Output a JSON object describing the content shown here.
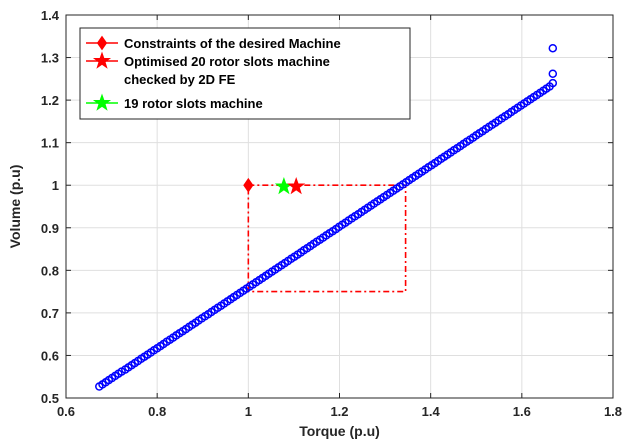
{
  "chart_data": {
    "type": "scatter",
    "title": "",
    "xlabel": "Torque (p.u)",
    "ylabel": "Volume (p.u)",
    "xlim": [
      0.6,
      1.8
    ],
    "ylim": [
      0.5,
      1.4
    ],
    "xticks": [
      "0.6",
      "0.8",
      "1",
      "1.2",
      "1.4",
      "1.6",
      "1.8"
    ],
    "yticks": [
      "0.5",
      "0.6",
      "0.7",
      "0.8",
      "0.9",
      "1",
      "1.1",
      "1.2",
      "1.3",
      "1.4"
    ],
    "grid": true,
    "legend_position": "top-left",
    "legend": [
      {
        "label_lines": [
          "Constraints of the desired Machine"
        ],
        "marker": "diamond",
        "color": "#ff0000"
      },
      {
        "label_lines": [
          "Optimised 20 rotor slots machine",
          "checked by 2D FE"
        ],
        "marker": "star",
        "color": "#ff0000"
      },
      {
        "label_lines": [
          "19 rotor slots machine"
        ],
        "marker": "star",
        "color": "#00ff00"
      }
    ],
    "scatter_series": {
      "name": "",
      "color": "#0000ff",
      "x": [
        0.673,
        0.68,
        0.687,
        0.694,
        0.701,
        0.708,
        0.715,
        0.722,
        0.73,
        0.737,
        0.744,
        0.751,
        0.758,
        0.765,
        0.772,
        0.779,
        0.786,
        0.793,
        0.8,
        0.807,
        0.814,
        0.821,
        0.828,
        0.835,
        0.842,
        0.849,
        0.856,
        0.863,
        0.87,
        0.877,
        0.884,
        0.891,
        0.898,
        0.905,
        0.912,
        0.919,
        0.926,
        0.933,
        0.94,
        0.947,
        0.954,
        0.961,
        0.968,
        0.975,
        0.982,
        0.989,
        0.996,
        1.003,
        1.01,
        1.017,
        1.024,
        1.031,
        1.038,
        1.045,
        1.052,
        1.059,
        1.066,
        1.073,
        1.08,
        1.087,
        1.094,
        1.101,
        1.108,
        1.115,
        1.122,
        1.129,
        1.136,
        1.143,
        1.15,
        1.157,
        1.164,
        1.171,
        1.178,
        1.185,
        1.192,
        1.199,
        1.206,
        1.213,
        1.22,
        1.227,
        1.234,
        1.241,
        1.248,
        1.255,
        1.262,
        1.269,
        1.276,
        1.283,
        1.29,
        1.297,
        1.304,
        1.311,
        1.318,
        1.325,
        1.332,
        1.339,
        1.346,
        1.353,
        1.36,
        1.367,
        1.374,
        1.381,
        1.388,
        1.395,
        1.402,
        1.409,
        1.416,
        1.423,
        1.43,
        1.437,
        1.444,
        1.451,
        1.458,
        1.465,
        1.472,
        1.479,
        1.486,
        1.493,
        1.5,
        1.507,
        1.514,
        1.521,
        1.528,
        1.535,
        1.542,
        1.549,
        1.556,
        1.563,
        1.57,
        1.577,
        1.584,
        1.591,
        1.598,
        1.605,
        1.612,
        1.619,
        1.626,
        1.633,
        1.64,
        1.647,
        1.654,
        1.661,
        1.668,
        1.668,
        1.668
      ],
      "y": [
        0.527,
        0.532,
        0.537,
        0.542,
        0.547,
        0.552,
        0.557,
        0.562,
        0.567,
        0.572,
        0.577,
        0.582,
        0.587,
        0.592,
        0.597,
        0.602,
        0.607,
        0.612,
        0.617,
        0.622,
        0.627,
        0.632,
        0.637,
        0.642,
        0.647,
        0.652,
        0.657,
        0.662,
        0.667,
        0.672,
        0.677,
        0.682,
        0.687,
        0.692,
        0.697,
        0.702,
        0.707,
        0.712,
        0.717,
        0.722,
        0.727,
        0.732,
        0.737,
        0.742,
        0.747,
        0.752,
        0.757,
        0.762,
        0.767,
        0.772,
        0.777,
        0.782,
        0.787,
        0.792,
        0.797,
        0.802,
        0.807,
        0.812,
        0.817,
        0.822,
        0.827,
        0.832,
        0.837,
        0.842,
        0.847,
        0.852,
        0.857,
        0.862,
        0.867,
        0.872,
        0.877,
        0.882,
        0.887,
        0.892,
        0.897,
        0.902,
        0.907,
        0.912,
        0.917,
        0.922,
        0.927,
        0.932,
        0.937,
        0.942,
        0.947,
        0.952,
        0.957,
        0.962,
        0.967,
        0.972,
        0.977,
        0.982,
        0.987,
        0.992,
        0.997,
        1.002,
        1.007,
        1.012,
        1.017,
        1.022,
        1.027,
        1.032,
        1.037,
        1.042,
        1.047,
        1.052,
        1.057,
        1.062,
        1.067,
        1.072,
        1.077,
        1.082,
        1.087,
        1.092,
        1.097,
        1.102,
        1.107,
        1.112,
        1.117,
        1.122,
        1.127,
        1.132,
        1.137,
        1.142,
        1.147,
        1.152,
        1.157,
        1.162,
        1.167,
        1.172,
        1.177,
        1.182,
        1.187,
        1.192,
        1.197,
        1.202,
        1.207,
        1.212,
        1.217,
        1.222,
        1.227,
        1.232,
        1.24,
        1.262,
        1.322
      ]
    },
    "constraint_box": {
      "color": "#ff0000",
      "x": [
        1.0,
        1.345
      ],
      "y": [
        0.75,
        1.0
      ]
    },
    "points": {
      "constraint_diamond": {
        "x": 1.0,
        "y": 1.0,
        "color": "#ff0000"
      },
      "optimised_star": {
        "x": 1.105,
        "y": 0.997,
        "color": "#ff0000"
      },
      "rotor19_star": {
        "x": 1.078,
        "y": 0.997,
        "color": "#00ff00"
      }
    }
  }
}
